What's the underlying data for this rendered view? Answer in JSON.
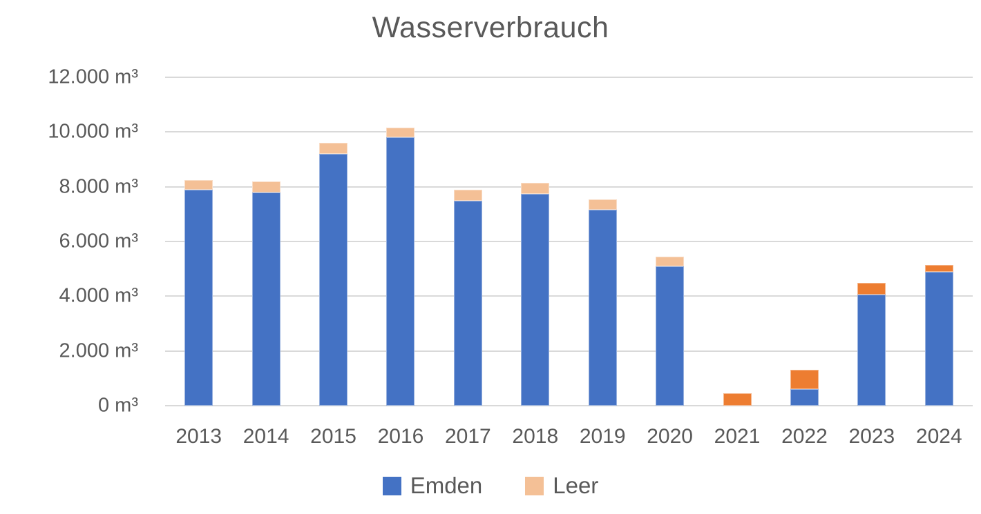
{
  "title": "Wasserverbrauch",
  "colors": {
    "emden_blue": "#4472C4",
    "leer_peach": "#F4C096",
    "leer_dark_orange": "#ED7D31",
    "gridline": "#D9D9D9",
    "text": "#595959",
    "background": "#FFFFFF"
  },
  "legend": {
    "items": [
      {
        "label": "Emden",
        "color": "#4472C4"
      },
      {
        "label": "Leer",
        "color": "#F4C096"
      }
    ]
  },
  "chart_data": {
    "type": "bar",
    "stacked": true,
    "title": "Wasserverbrauch",
    "categories": [
      "2013",
      "2014",
      "2015",
      "2016",
      "2017",
      "2018",
      "2019",
      "2020",
      "2021",
      "2022",
      "2023",
      "2024"
    ],
    "series": [
      {
        "name": "Emden",
        "color": "#4472C4",
        "values": [
          7900,
          7800,
          9200,
          9800,
          7500,
          7750,
          7150,
          5100,
          0,
          600,
          4050,
          4900
        ]
      },
      {
        "name": "Leer",
        "color": "#F4C096",
        "values": [
          350,
          400,
          400,
          350,
          400,
          400,
          400,
          350,
          450,
          700,
          450,
          250
        ],
        "point_colors": [
          "#F4C096",
          "#F4C096",
          "#F4C096",
          "#F4C096",
          "#F4C096",
          "#F4C096",
          "#F4C096",
          "#F4C096",
          "#ED7D31",
          "#ED7D31",
          "#ED7D31",
          "#ED7D31"
        ]
      }
    ],
    "stack_totals": [
      8250,
      8200,
      9600,
      10150,
      7900,
      8150,
      7550,
      5450,
      450,
      1300,
      4500,
      5150
    ],
    "y_axis": {
      "min": 0,
      "max": 12000,
      "tick_step": 2000,
      "unit": "m³",
      "tick_labels": [
        "0 m³",
        "2.000 m³",
        "4.000 m³",
        "6.000 m³",
        "8.000 m³",
        "10.000 m³",
        "12.000 m³"
      ]
    },
    "x_axis": {
      "label": ""
    },
    "ylabel": "",
    "xlabel": "",
    "grid": true,
    "legend_position": "bottom"
  }
}
